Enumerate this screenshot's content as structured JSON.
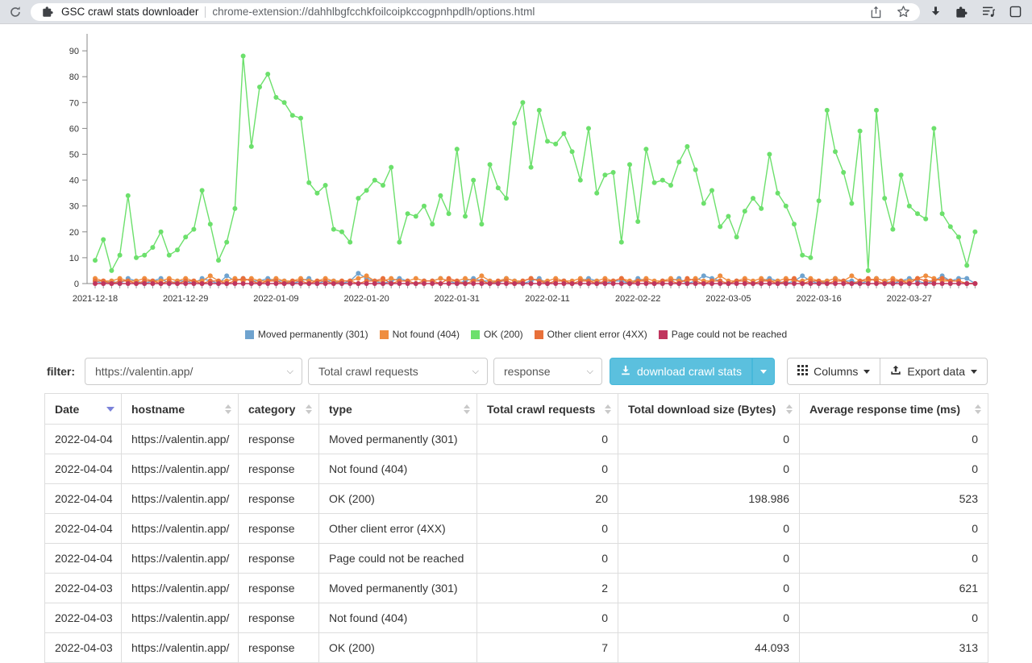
{
  "browser": {
    "tab_title": "GSC crawl stats downloader",
    "url": "chrome-extension://dahhlbgfcchkfoilcoipkccogpnhpdlh/options.html",
    "icons": {
      "reload": "circular-arrow",
      "extension_favicon": "puzzle-piece",
      "share": "box-with-up-arrow",
      "bookmark": "star-outline",
      "downloads": "down-arrow",
      "extensions": "puzzle-piece",
      "reading_list": "list-with-music-note",
      "side_panel": "square-outline"
    }
  },
  "chart_data": {
    "type": "line",
    "title": "",
    "xlabel": "",
    "ylabel": "",
    "x_start_date": "2021-12-18",
    "x_end_date": "2022-04-04",
    "x_frequency": "daily",
    "x_tick_labels": [
      "2021-12-18",
      "2021-12-29",
      "2022-01-09",
      "2022-01-20",
      "2022-01-31",
      "2022-02-11",
      "2022-02-22",
      "2022-03-05",
      "2022-03-16",
      "2022-03-27"
    ],
    "y_ticks": [
      0,
      10,
      20,
      30,
      40,
      50,
      60,
      70,
      80,
      90
    ],
    "ylim": [
      0,
      95
    ],
    "grid": false,
    "legend_position": "bottom",
    "series": [
      {
        "name": "Moved permanently (301)",
        "color": "#6fa3cf",
        "values": [
          1,
          0,
          1,
          0,
          2,
          1,
          0,
          1,
          2,
          0,
          1,
          1,
          0,
          2,
          1,
          0,
          3,
          1,
          2,
          1,
          1,
          2,
          1,
          1,
          0,
          1,
          2,
          0,
          1,
          1,
          0,
          1,
          4,
          2,
          1,
          0,
          1,
          2,
          1,
          0,
          1,
          1,
          2,
          1,
          0,
          1,
          2,
          1,
          1,
          0,
          2,
          1,
          0,
          1,
          2,
          0,
          1,
          1,
          0,
          1,
          2,
          1,
          0,
          1,
          1,
          0,
          2,
          1,
          0,
          1,
          1,
          2,
          0,
          1,
          3,
          2,
          1,
          0,
          1,
          1,
          0,
          1,
          2,
          1,
          0,
          1,
          3,
          1,
          0,
          1,
          2,
          1,
          1,
          0,
          1,
          2,
          1,
          0,
          1,
          2,
          1,
          0,
          1,
          3,
          1,
          2,
          2,
          0
        ]
      },
      {
        "name": "Not found (404)",
        "color": "#ef8d3f",
        "values": [
          2,
          1,
          1,
          2,
          1,
          1,
          2,
          1,
          1,
          2,
          1,
          2,
          1,
          1,
          3,
          1,
          1,
          2,
          1,
          2,
          1,
          1,
          2,
          1,
          1,
          2,
          1,
          1,
          2,
          1,
          1,
          1,
          2,
          3,
          1,
          1,
          2,
          1,
          1,
          2,
          1,
          1,
          2,
          1,
          1,
          2,
          1,
          3,
          1,
          1,
          2,
          1,
          1,
          2,
          1,
          1,
          2,
          1,
          1,
          2,
          1,
          1,
          2,
          1,
          2,
          1,
          1,
          2,
          1,
          1,
          2,
          1,
          1,
          2,
          1,
          1,
          3,
          1,
          1,
          2,
          1,
          2,
          1,
          1,
          2,
          1,
          1,
          2,
          1,
          1,
          2,
          1,
          3,
          1,
          1,
          2,
          1,
          2,
          1,
          1,
          2,
          3,
          2,
          1,
          1,
          1,
          0,
          0
        ]
      },
      {
        "name": "OK (200)",
        "color": "#6ce06c",
        "values": [
          9,
          17,
          5,
          11,
          34,
          10,
          11,
          14,
          20,
          11,
          13,
          18,
          21,
          36,
          23,
          9,
          16,
          29,
          88,
          53,
          76,
          81,
          72,
          70,
          65,
          64,
          39,
          35,
          38,
          21,
          20,
          16,
          33,
          36,
          40,
          38,
          45,
          16,
          27,
          26,
          30,
          23,
          34,
          27,
          52,
          26,
          40,
          23,
          46,
          37,
          33,
          62,
          70,
          45,
          67,
          55,
          54,
          58,
          51,
          40,
          60,
          35,
          42,
          43,
          16,
          46,
          24,
          52,
          39,
          40,
          38,
          47,
          53,
          44,
          31,
          36,
          22,
          26,
          18,
          28,
          33,
          29,
          50,
          35,
          30,
          23,
          11,
          10,
          32,
          67,
          51,
          43,
          31,
          59,
          5,
          67,
          33,
          21,
          42,
          30,
          27,
          25,
          60,
          27,
          22,
          18,
          7,
          20
        ]
      },
      {
        "name": "Other client error (4XX)",
        "color": "#e8703a",
        "values": [
          1,
          1,
          0,
          1,
          1,
          0,
          1,
          1,
          0,
          1,
          0,
          1,
          1,
          0,
          1,
          1,
          0,
          1,
          2,
          1,
          0,
          1,
          1,
          0,
          1,
          1,
          0,
          1,
          1,
          0,
          1,
          1,
          0,
          1,
          1,
          2,
          0,
          1,
          1,
          0,
          1,
          1,
          0,
          2,
          1,
          0,
          1,
          1,
          0,
          1,
          1,
          0,
          1,
          2,
          1,
          0,
          1,
          1,
          0,
          1,
          1,
          0,
          1,
          1,
          2,
          0,
          1,
          1,
          0,
          1,
          1,
          0,
          2,
          1,
          0,
          1,
          1,
          0,
          1,
          1,
          0,
          1,
          1,
          0,
          1,
          2,
          0,
          1,
          1,
          0,
          1,
          1,
          0,
          1,
          2,
          1,
          0,
          1,
          1,
          0,
          2,
          1,
          1,
          2,
          1,
          1,
          0,
          0
        ]
      },
      {
        "name": "Page could not be reached",
        "color": "#c0355e",
        "values": [
          0,
          0,
          0,
          0,
          0,
          0,
          0,
          0,
          0,
          0,
          0,
          0,
          0,
          0,
          0,
          0,
          0,
          0,
          0,
          0,
          0,
          0,
          0,
          0,
          0,
          0,
          0,
          0,
          0,
          0,
          0,
          0,
          0,
          0,
          0,
          0,
          0,
          0,
          0,
          0,
          0,
          0,
          0,
          0,
          0,
          0,
          0,
          0,
          0,
          0,
          0,
          0,
          0,
          0,
          0,
          0,
          0,
          0,
          0,
          0,
          0,
          0,
          0,
          0,
          0,
          0,
          0,
          0,
          0,
          0,
          0,
          0,
          0,
          0,
          0,
          0,
          0,
          0,
          0,
          0,
          0,
          0,
          0,
          0,
          0,
          0,
          0,
          0,
          0,
          0,
          0,
          0,
          0,
          0,
          0,
          0,
          0,
          0,
          0,
          0,
          0,
          0,
          0,
          0,
          0,
          0,
          0,
          0
        ]
      }
    ]
  },
  "filter": {
    "label": "filter:",
    "selects": [
      {
        "value": "https://valentin.app/"
      },
      {
        "value": "Total crawl requests"
      },
      {
        "value": "response"
      }
    ],
    "download_button_label": "download crawl stats",
    "download_icon": "download-arrow-tray",
    "columns_button_label": "Columns",
    "columns_icon": "grid-3x3",
    "export_button_label": "Export data",
    "export_icon": "export-arrow-tray"
  },
  "table": {
    "columns": [
      {
        "key": "date",
        "label": "Date",
        "sort": "desc-active"
      },
      {
        "key": "hostname",
        "label": "hostname",
        "sort": "both"
      },
      {
        "key": "category",
        "label": "category",
        "sort": "both"
      },
      {
        "key": "type",
        "label": "type",
        "sort": "both"
      },
      {
        "key": "total_crawl_requests",
        "label": "Total crawl requests",
        "sort": "both"
      },
      {
        "key": "total_download_size",
        "label": "Total download size (Bytes)",
        "sort": "both"
      },
      {
        "key": "avg_response_time",
        "label": "Average response time (ms)",
        "sort": "both"
      }
    ],
    "rows": [
      {
        "date": "2022-04-04",
        "hostname": "https://valentin.app/",
        "category": "response",
        "type": "Moved permanently (301)",
        "total_crawl_requests": "0",
        "total_download_size": "0",
        "avg_response_time": "0"
      },
      {
        "date": "2022-04-04",
        "hostname": "https://valentin.app/",
        "category": "response",
        "type": "Not found (404)",
        "total_crawl_requests": "0",
        "total_download_size": "0",
        "avg_response_time": "0"
      },
      {
        "date": "2022-04-04",
        "hostname": "https://valentin.app/",
        "category": "response",
        "type": "OK (200)",
        "total_crawl_requests": "20",
        "total_download_size": "198.986",
        "avg_response_time": "523"
      },
      {
        "date": "2022-04-04",
        "hostname": "https://valentin.app/",
        "category": "response",
        "type": "Other client error (4XX)",
        "total_crawl_requests": "0",
        "total_download_size": "0",
        "avg_response_time": "0"
      },
      {
        "date": "2022-04-04",
        "hostname": "https://valentin.app/",
        "category": "response",
        "type": "Page could not be reached",
        "total_crawl_requests": "0",
        "total_download_size": "0",
        "avg_response_time": "0"
      },
      {
        "date": "2022-04-03",
        "hostname": "https://valentin.app/",
        "category": "response",
        "type": "Moved permanently (301)",
        "total_crawl_requests": "2",
        "total_download_size": "0",
        "avg_response_time": "621"
      },
      {
        "date": "2022-04-03",
        "hostname": "https://valentin.app/",
        "category": "response",
        "type": "Not found (404)",
        "total_crawl_requests": "0",
        "total_download_size": "0",
        "avg_response_time": "0"
      },
      {
        "date": "2022-04-03",
        "hostname": "https://valentin.app/",
        "category": "response",
        "type": "OK (200)",
        "total_crawl_requests": "7",
        "total_download_size": "44.093",
        "avg_response_time": "313"
      }
    ]
  }
}
